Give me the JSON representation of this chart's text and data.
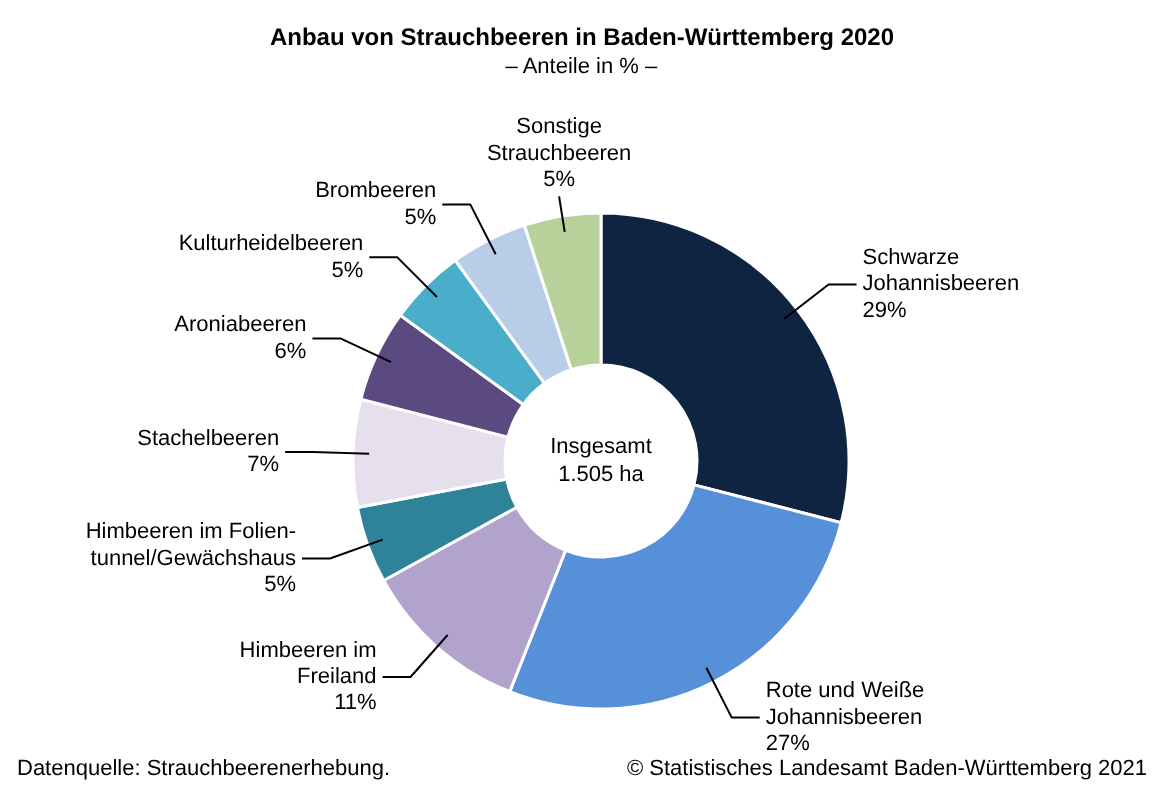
{
  "chart_data": {
    "type": "donut",
    "title": "Anbau von Strauchbeeren in Baden-Württemberg 2020",
    "subtitle": "– Anteile in % –",
    "categories": [
      "Schwarze\nJohannisbeeren",
      "Rote und Weiße\nJohannisbeeren",
      "Himbeeren im\nFreiland",
      "Himbeeren im Folien-\ntunnel/Gewächshaus",
      "Stachelbeeren",
      "Aroniabeeren",
      "Kulturheidelbeeren",
      "Brombeeren",
      "Sonstige\nStrauchbeeren"
    ],
    "values": [
      29,
      27,
      11,
      5,
      7,
      6,
      5,
      5,
      5
    ],
    "colors": [
      "#0f2441",
      "#5590d8",
      "#b2a3cc",
      "#2e8299",
      "#e6dfee",
      "#5b4a80",
      "#4aadc9",
      "#b8cde8",
      "#b8d09a"
    ],
    "value_labels": [
      "29%",
      "27%",
      "11%",
      "5%",
      "7%",
      "6%",
      "5%",
      "5%",
      "5%"
    ],
    "annotations": [
      "Insgesamt\n1.505 ha",
      "Datenquelle: Strauchbeerenerhebung.",
      "© Statistisches Landesamt Baden-Württemberg 2021"
    ]
  }
}
